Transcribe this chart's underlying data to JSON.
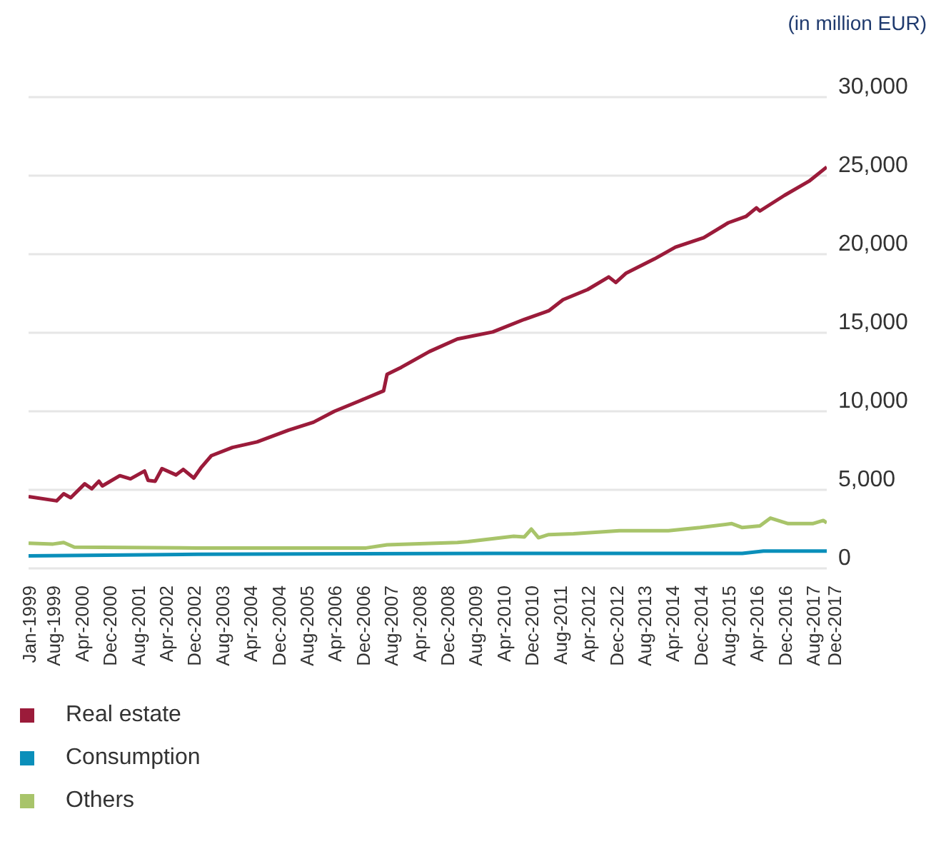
{
  "chart_data": {
    "type": "line",
    "ylabel": "(in million EUR)",
    "xlim": [
      "1999-01",
      "2017-12"
    ],
    "xticks": [
      {
        "value": "1999-01",
        "label": "Jan-1999"
      },
      {
        "value": "1999-08",
        "label": "Aug-1999"
      },
      {
        "value": "2000-04",
        "label": "Apr-2000"
      },
      {
        "value": "2000-12",
        "label": "Dec-2000"
      },
      {
        "value": "2001-08",
        "label": "Aug-2001"
      },
      {
        "value": "2002-04",
        "label": "Apr-2002"
      },
      {
        "value": "2002-12",
        "label": "Dec-2002"
      },
      {
        "value": "2003-08",
        "label": "Aug-2003"
      },
      {
        "value": "2004-04",
        "label": "Apr-2004"
      },
      {
        "value": "2004-12",
        "label": "Dec-2004"
      },
      {
        "value": "2005-08",
        "label": "Aug-2005"
      },
      {
        "value": "2006-04",
        "label": "Apr-2006"
      },
      {
        "value": "2006-12",
        "label": "Dec-2006"
      },
      {
        "value": "2007-08",
        "label": "Aug-2007"
      },
      {
        "value": "2008-04",
        "label": "Apr-2008"
      },
      {
        "value": "2008-12",
        "label": "Dec-2008"
      },
      {
        "value": "2009-08",
        "label": "Aug-2009"
      },
      {
        "value": "2010-04",
        "label": "Apr-2010"
      },
      {
        "value": "2010-12",
        "label": "Dec-2010"
      },
      {
        "value": "2011-08",
        "label": "Aug-2011"
      },
      {
        "value": "2012-04",
        "label": "Apr-2012"
      },
      {
        "value": "2012-12",
        "label": "Dec-2012"
      },
      {
        "value": "2013-08",
        "label": "Aug-2013"
      },
      {
        "value": "2014-04",
        "label": "Apr-2014"
      },
      {
        "value": "2014-12",
        "label": "Dec-2014"
      },
      {
        "value": "2015-08",
        "label": "Aug-2015"
      },
      {
        "value": "2016-04",
        "label": "Apr-2016"
      },
      {
        "value": "2016-12",
        "label": "Dec-2016"
      },
      {
        "value": "2017-08",
        "label": "Aug-2017"
      },
      {
        "value": "2017-12",
        "label": "Dec-2017"
      }
    ],
    "ylim": [
      0,
      30000
    ],
    "yticks": [
      {
        "value": 0,
        "label": "0"
      },
      {
        "value": 5000,
        "label": "5,000"
      },
      {
        "value": 10000,
        "label": "10,000"
      },
      {
        "value": 15000,
        "label": "15,000"
      },
      {
        "value": 20000,
        "label": "20,000"
      },
      {
        "value": 25000,
        "label": "25,000"
      },
      {
        "value": 30000,
        "label": "30,000"
      }
    ],
    "grid": "y",
    "legend": "bottom left",
    "marker": "none",
    "line_style": "solid",
    "series": [
      {
        "name": "Real estate",
        "color": "#9b1b3a",
        "x": [
          "1999-01",
          "1999-09",
          "1999-11",
          "2000-01",
          "2000-05",
          "2000-07",
          "2000-09",
          "2000-10",
          "2001-03",
          "2001-06",
          "2001-10",
          "2001-11",
          "2002-01",
          "2002-03",
          "2002-07",
          "2002-09",
          "2002-12",
          "2003-02",
          "2003-05",
          "2003-11",
          "2004-06",
          "2005-03",
          "2005-10",
          "2006-04",
          "2006-11",
          "2007-06",
          "2007-07",
          "2007-11",
          "2008-07",
          "2009-03",
          "2010-01",
          "2010-10",
          "2011-05",
          "2011-09",
          "2012-04",
          "2012-10",
          "2012-12",
          "2013-03",
          "2013-11",
          "2014-05",
          "2015-01",
          "2015-08",
          "2016-01",
          "2016-04",
          "2016-05",
          "2016-12",
          "2017-07",
          "2017-12"
        ],
        "values": [
          4570,
          4300,
          4750,
          4500,
          5380,
          5070,
          5550,
          5250,
          5900,
          5700,
          6200,
          5600,
          5550,
          6350,
          5950,
          6300,
          5750,
          6400,
          7170,
          7700,
          8050,
          8800,
          9300,
          10000,
          10650,
          11300,
          12350,
          12800,
          13800,
          14600,
          15050,
          15850,
          16400,
          17100,
          17750,
          18550,
          18200,
          18800,
          19700,
          20450,
          21050,
          22000,
          22400,
          22950,
          22750,
          23750,
          24650,
          25550
        ]
      },
      {
        "name": "Consumption",
        "color": "#0a8fba",
        "x": [
          "1999-01",
          "2003-01",
          "2010-01",
          "2015-12",
          "2016-06",
          "2017-12"
        ],
        "values": [
          800,
          900,
          950,
          950,
          1100,
          1100
        ]
      },
      {
        "name": "Others",
        "color": "#a8c46a",
        "x": [
          "1999-01",
          "1999-08",
          "1999-11",
          "2000-02",
          "2003-01",
          "2007-01",
          "2007-07",
          "2009-03",
          "2009-06",
          "2010-07",
          "2010-10",
          "2010-12",
          "2011-02",
          "2011-05",
          "2011-12",
          "2013-01",
          "2014-03",
          "2014-12",
          "2015-09",
          "2015-12",
          "2016-05",
          "2016-08",
          "2017-01",
          "2017-08",
          "2017-11",
          "2017-12"
        ],
        "values": [
          1600,
          1550,
          1650,
          1350,
          1300,
          1300,
          1500,
          1650,
          1700,
          2050,
          2000,
          2500,
          1950,
          2150,
          2200,
          2400,
          2400,
          2600,
          2850,
          2600,
          2700,
          3200,
          2850,
          2850,
          3050,
          2900
        ]
      }
    ]
  }
}
